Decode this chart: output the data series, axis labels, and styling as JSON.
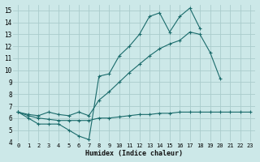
{
  "title": "",
  "xlabel": "Humidex (Indice chaleur)",
  "bg_color": "#cce8e8",
  "grid_color": "#aacccc",
  "line_color": "#1a6b6b",
  "xlim": [
    -0.5,
    23.5
  ],
  "ylim": [
    4,
    15.5
  ],
  "xticks": [
    0,
    1,
    2,
    3,
    4,
    5,
    6,
    7,
    8,
    9,
    10,
    11,
    12,
    13,
    14,
    15,
    16,
    17,
    18,
    19,
    20,
    21,
    22,
    23
  ],
  "yticks": [
    4,
    5,
    6,
    7,
    8,
    9,
    10,
    11,
    12,
    13,
    14,
    15
  ],
  "series": [
    {
      "x": [
        0,
        1,
        2,
        3,
        4,
        5,
        6,
        7,
        8,
        9,
        10,
        11,
        12,
        13,
        14,
        15,
        16,
        17,
        18,
        19,
        20,
        21,
        22,
        23
      ],
      "y": [
        6.5,
        6.0,
        5.5,
        5.5,
        5.5,
        5.0,
        4.5,
        4.2,
        9.5,
        9.7,
        11.2,
        12.0,
        13.0,
        14.5,
        14.8,
        13.2,
        14.5,
        15.2,
        13.5,
        null,
        null,
        null,
        null,
        null
      ]
    },
    {
      "x": [
        0,
        1,
        2,
        3,
        4,
        5,
        6,
        7,
        8,
        9,
        10,
        11,
        12,
        13,
        14,
        15,
        16,
        17,
        18,
        19,
        20,
        21,
        22,
        23
      ],
      "y": [
        6.5,
        6.3,
        6.2,
        6.5,
        6.3,
        6.2,
        6.5,
        6.2,
        7.5,
        8.2,
        9.0,
        9.8,
        10.5,
        11.2,
        11.8,
        12.2,
        12.5,
        13.2,
        13.0,
        11.5,
        9.3,
        null,
        null,
        null
      ]
    },
    {
      "x": [
        0,
        1,
        2,
        3,
        4,
        5,
        6,
        7,
        8,
        9,
        10,
        11,
        12,
        13,
        14,
        15,
        16,
        17,
        18,
        19,
        20,
        21,
        22,
        23
      ],
      "y": [
        6.5,
        6.2,
        6.0,
        5.9,
        5.8,
        5.8,
        5.8,
        5.8,
        6.0,
        6.0,
        6.1,
        6.2,
        6.3,
        6.3,
        6.4,
        6.4,
        6.5,
        6.5,
        6.5,
        6.5,
        6.5,
        6.5,
        6.5,
        6.5
      ]
    }
  ]
}
